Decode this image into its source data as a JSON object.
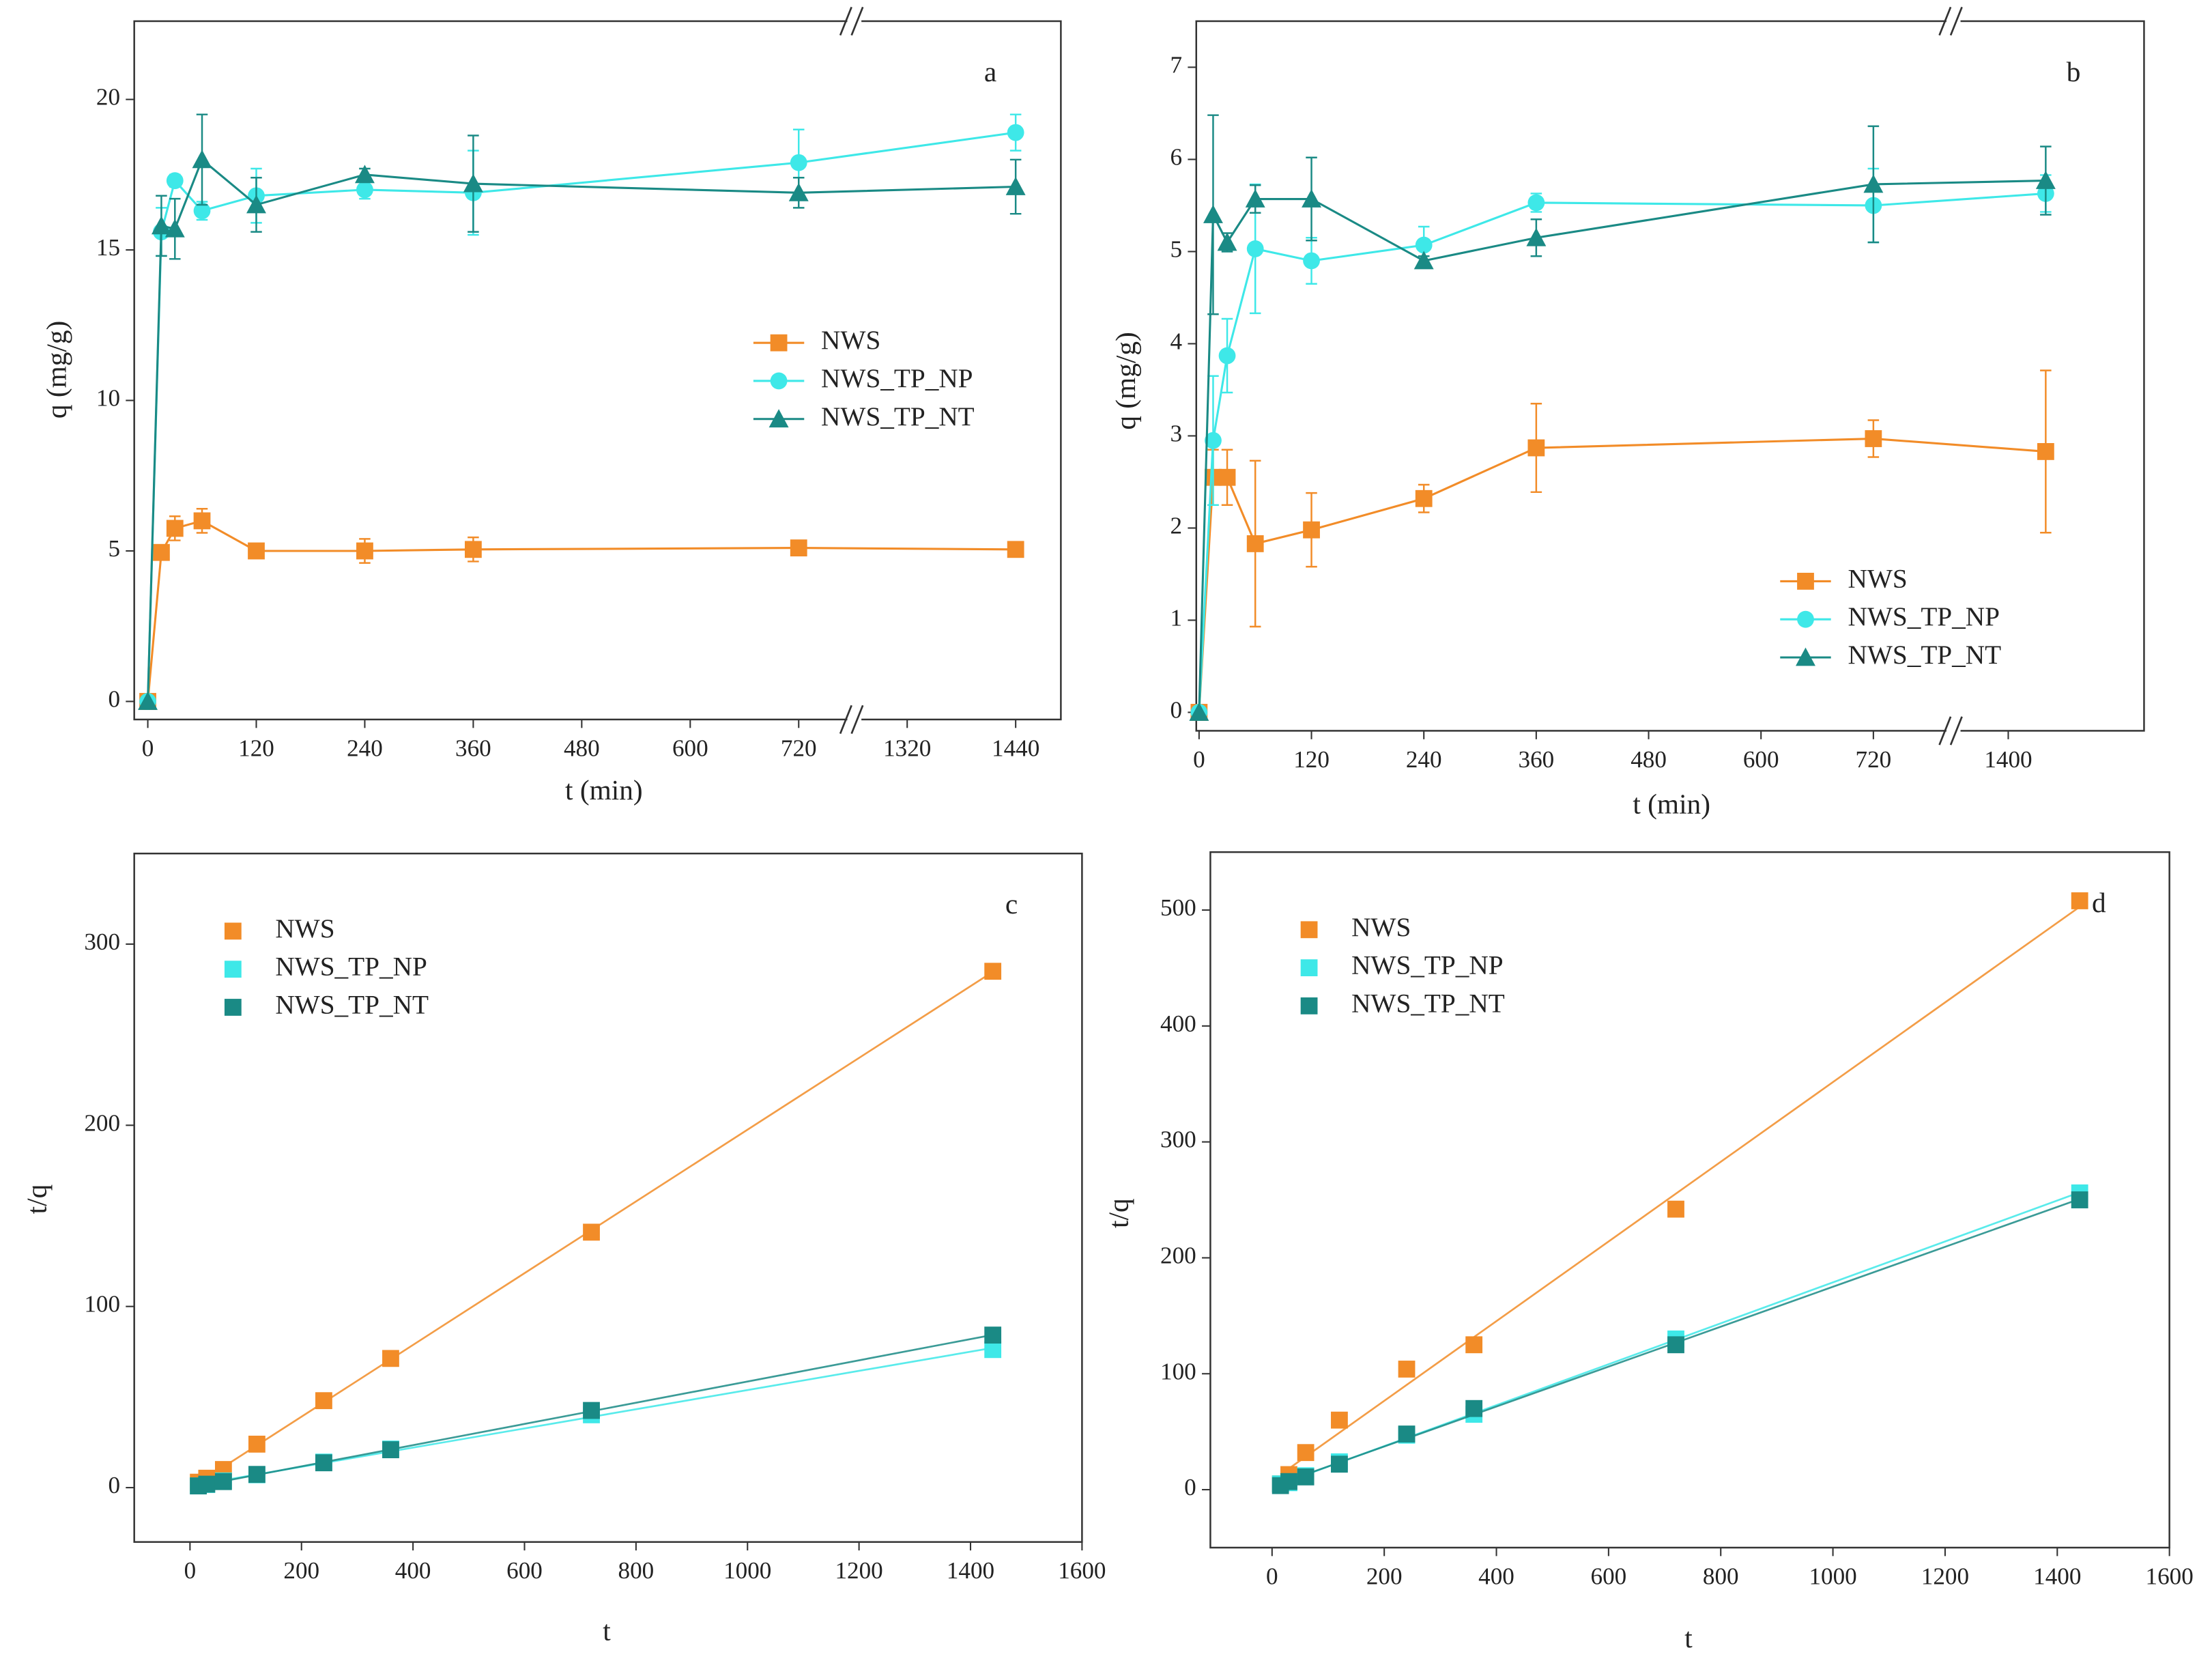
{
  "chart_data": [
    {
      "type": "line",
      "annotation": "a",
      "xlabel": "t (min)",
      "ylabel": "q (mg/g)",
      "x": [
        0,
        15,
        30,
        60,
        120,
        240,
        360,
        720,
        1440
      ],
      "xlim": [
        -15,
        1490
      ],
      "xbreak": [
        780,
        1260
      ],
      "xticks": [
        0,
        120,
        240,
        360,
        480,
        600,
        720,
        1320,
        1440
      ],
      "ylim": [
        -0.6,
        22.6
      ],
      "yticks": [
        0,
        5,
        10,
        15,
        20
      ],
      "legend": "center right",
      "series": [
        {
          "name": "NWS",
          "color": "#f28c28",
          "marker": "square",
          "values": [
            0,
            4.95,
            5.75,
            6.0,
            5.0,
            5.0,
            5.05,
            5.1,
            5.05
          ],
          "errors": [
            0,
            0.2,
            0.4,
            0.4,
            0.15,
            0.4,
            0.4,
            0.15,
            0.15
          ]
        },
        {
          "name": "NWS_TP_NP",
          "color": "#3ee8e8",
          "marker": "circle",
          "values": [
            0,
            15.6,
            17.3,
            16.3,
            16.8,
            17.0,
            16.9,
            17.9,
            18.9
          ],
          "errors": [
            0,
            0.8,
            0.2,
            0.3,
            0.9,
            0.3,
            1.4,
            1.1,
            0.6
          ]
        },
        {
          "name": "NWS_TP_NT",
          "color": "#1a8a85",
          "marker": "triangle",
          "values": [
            0,
            15.8,
            15.7,
            18.0,
            16.5,
            17.5,
            17.2,
            16.9,
            17.1
          ],
          "errors": [
            0,
            1.0,
            1.0,
            1.5,
            0.9,
            0.2,
            1.6,
            0.5,
            0.9
          ]
        }
      ]
    },
    {
      "type": "line",
      "annotation": "b",
      "xlabel": "t (min)",
      "ylabel": "q (mg/g)",
      "x": [
        0,
        15,
        30,
        60,
        120,
        240,
        360,
        720,
        1440
      ],
      "xlim": [
        -3,
        1545
      ],
      "xbreak": [
        804,
        1340
      ],
      "xticks": [
        0,
        120,
        240,
        360,
        480,
        600,
        720,
        1400
      ],
      "ylim": [
        -0.2,
        7.5
      ],
      "yticks": [
        0,
        1,
        2,
        3,
        4,
        5,
        6,
        7
      ],
      "legend": "lower right",
      "series": [
        {
          "name": "NWS",
          "color": "#f28c28",
          "marker": "square",
          "values": [
            0,
            2.55,
            2.55,
            1.83,
            1.98,
            2.32,
            2.87,
            2.97,
            2.83
          ],
          "errors": [
            0,
            0.3,
            0.3,
            0.9,
            0.4,
            0.15,
            0.48,
            0.2,
            0.88
          ]
        },
        {
          "name": "NWS_TP_NP",
          "color": "#3ee8e8",
          "marker": "circle",
          "values": [
            0,
            2.95,
            3.87,
            5.03,
            4.9,
            5.07,
            5.53,
            5.5,
            5.63
          ],
          "errors": [
            0,
            0.7,
            0.4,
            0.7,
            0.25,
            0.2,
            0.1,
            0.4,
            0.2
          ]
        },
        {
          "name": "NWS_TP_NT",
          "color": "#1a8a85",
          "marker": "triangle",
          "values": [
            0,
            5.4,
            5.1,
            5.57,
            5.57,
            4.9,
            5.15,
            5.73,
            5.77
          ],
          "errors": [
            0,
            1.08,
            0.1,
            0.15,
            0.45,
            0.05,
            0.2,
            0.63,
            0.37
          ]
        }
      ]
    },
    {
      "type": "scatter",
      "annotation": "c",
      "xlabel": "t",
      "ylabel": "t/q",
      "fit": "linear",
      "x": [
        15,
        30,
        60,
        120,
        240,
        360,
        720,
        1440
      ],
      "xlim": [
        -100,
        1600
      ],
      "xticks": [
        0,
        200,
        400,
        600,
        800,
        1000,
        1200,
        1400,
        1600
      ],
      "ylim": [
        -30,
        350
      ],
      "yticks": [
        0,
        100,
        200,
        300
      ],
      "legend": "upper left",
      "series": [
        {
          "name": "NWS",
          "color": "#f28c28",
          "marker": "square",
          "values": [
            3.0,
            5.2,
            10,
            24,
            48,
            71.3,
            141,
            285
          ]
        },
        {
          "name": "NWS_TP_NP",
          "color": "#3ee8e8",
          "marker": "square",
          "values": [
            0.96,
            1.73,
            3.7,
            7.1,
            14.1,
            21.3,
            40.2,
            76.2
          ]
        },
        {
          "name": "NWS_TP_NT",
          "color": "#1a8a85",
          "marker": "square",
          "values": [
            0.95,
            1.91,
            3.33,
            7.3,
            13.7,
            20.9,
            42.6,
            84.2
          ]
        }
      ]
    },
    {
      "type": "scatter",
      "annotation": "d",
      "xlabel": "t",
      "ylabel": "t/q",
      "fit": "linear",
      "x": [
        15,
        30,
        60,
        120,
        240,
        360,
        720,
        1440
      ],
      "xlim": [
        -110,
        1600
      ],
      "xticks": [
        0,
        200,
        400,
        600,
        800,
        1000,
        1200,
        1400,
        1600
      ],
      "ylim": [
        -50,
        550
      ],
      "yticks": [
        0,
        100,
        200,
        300,
        400,
        500
      ],
      "legend": "upper left",
      "series": [
        {
          "name": "NWS",
          "color": "#f28c28",
          "marker": "square",
          "values": [
            5,
            13,
            32,
            60,
            104,
            125,
            242,
            508
          ]
        },
        {
          "name": "NWS_TP_NP",
          "color": "#3ee8e8",
          "marker": "square",
          "values": [
            5,
            6,
            12,
            24,
            47,
            65,
            130,
            256
          ]
        },
        {
          "name": "NWS_TP_NT",
          "color": "#1a8a85",
          "marker": "square",
          "values": [
            3.5,
            7,
            11,
            22,
            48,
            70,
            125,
            250
          ]
        }
      ]
    }
  ]
}
